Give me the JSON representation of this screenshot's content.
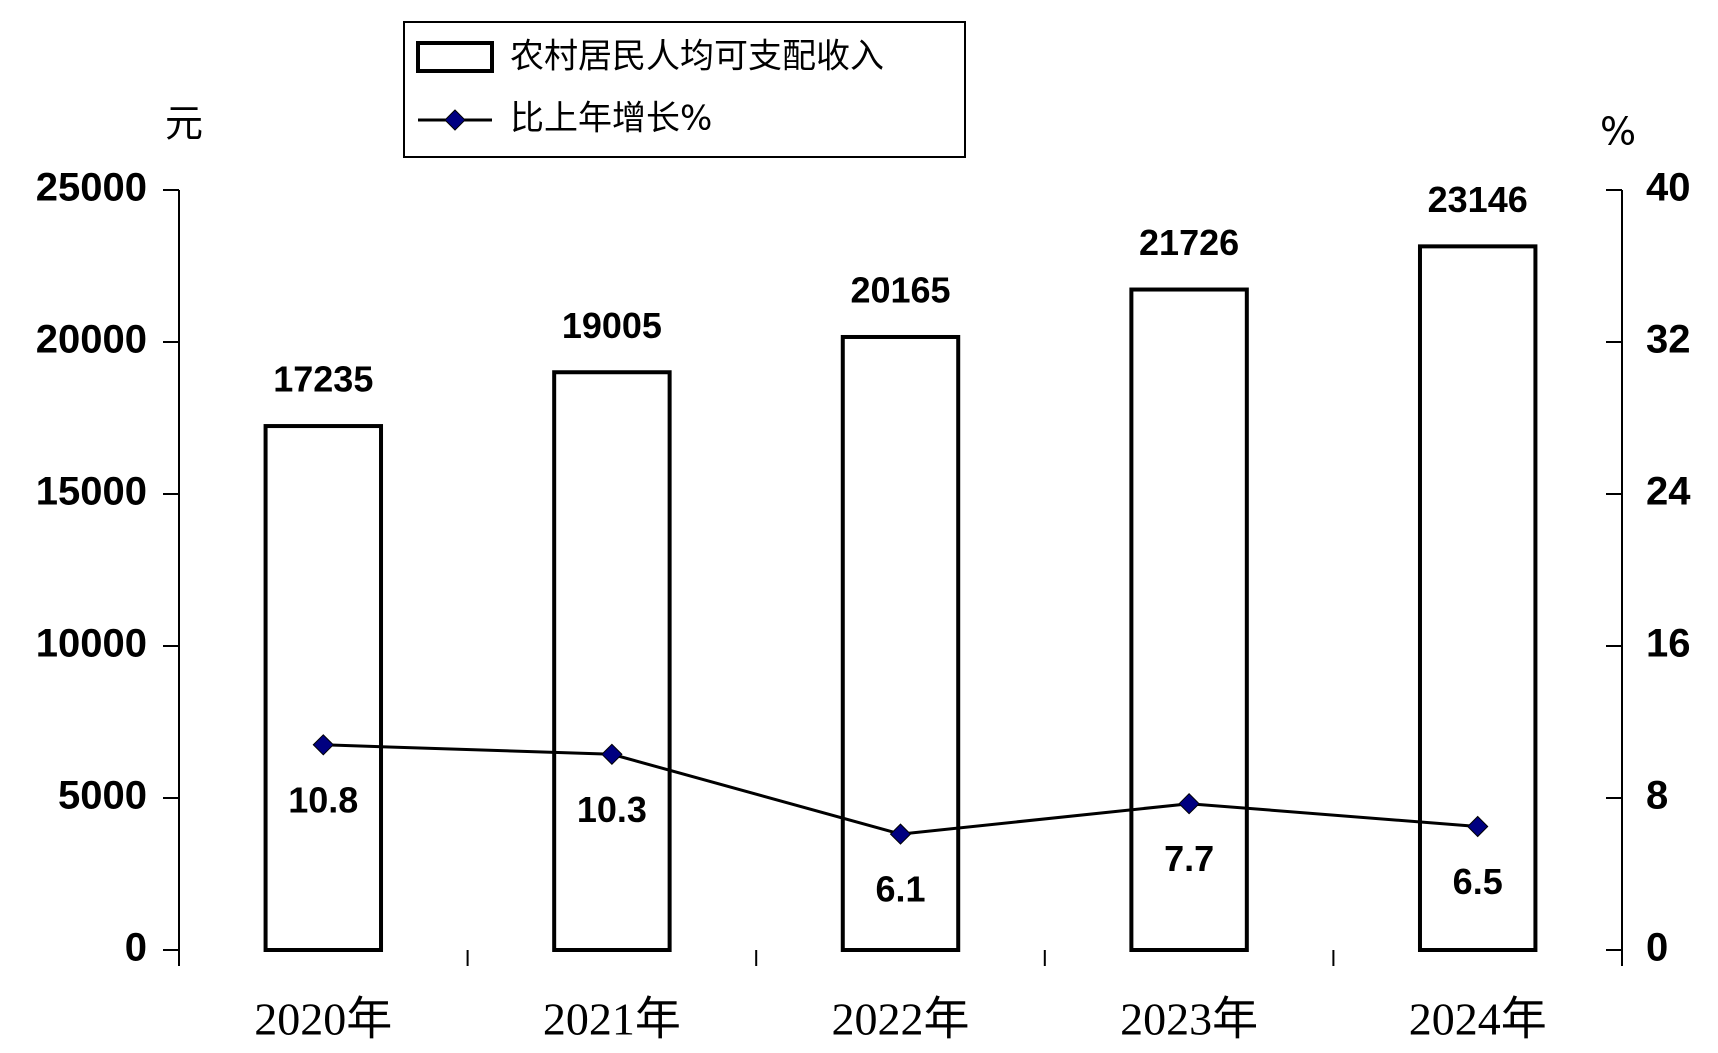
{
  "chart_data": {
    "type": "bar",
    "y_unit": "元",
    "y2_unit": "%",
    "categories": [
      "2020年",
      "2021年",
      "2022年",
      "2023年",
      "2024年"
    ],
    "series": [
      {
        "name": "农村居民人均可支配收入",
        "type": "bar",
        "color": "#ffffff",
        "values": [
          17235,
          19005,
          20165,
          21726,
          23146
        ]
      },
      {
        "name": "比上年增长%",
        "type": "line",
        "axis": "y2",
        "color": "#000080",
        "values": [
          10.8,
          10.3,
          6.1,
          7.7,
          6.5
        ]
      }
    ],
    "ylim": [
      0,
      25000
    ],
    "yticks": [
      0,
      5000,
      10000,
      15000,
      20000,
      25000
    ],
    "y2lim": [
      0,
      40
    ],
    "y2ticks": [
      0,
      8,
      16,
      24,
      32,
      40
    ],
    "legend": "top"
  }
}
